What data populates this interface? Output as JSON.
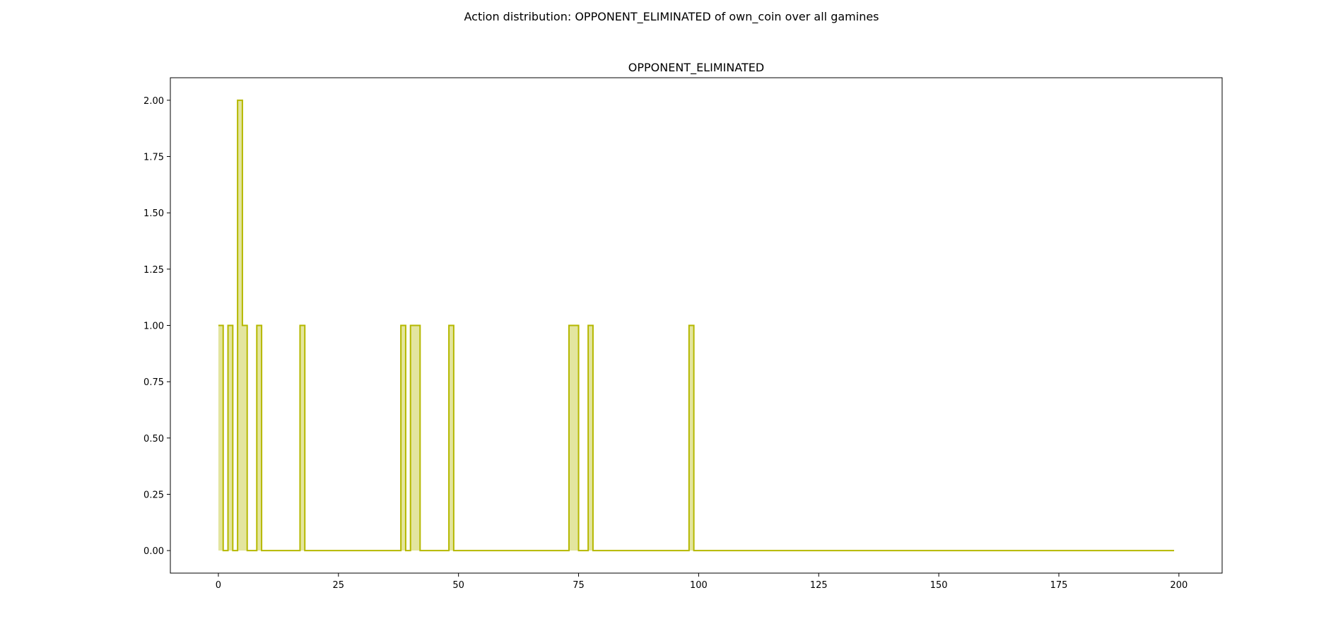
{
  "figure": {
    "suptitle": "Action distribution: OPPONENT_ELIMINATED of own_coin over all gamines"
  },
  "chart_data": {
    "type": "area",
    "title": "OPPONENT_ELIMINATED",
    "xlabel": "",
    "ylabel": "",
    "xlim": [
      -10,
      209
    ],
    "ylim": [
      -0.1,
      2.1
    ],
    "xticks": [
      0,
      25,
      50,
      75,
      100,
      125,
      150,
      175,
      200
    ],
    "yticks": [
      0.0,
      0.25,
      0.5,
      0.75,
      1.0,
      1.25,
      1.5,
      1.75,
      2.0
    ],
    "grid": false,
    "colors": {
      "line": "#b5b800",
      "fill": "#e3e59f"
    },
    "series": [
      {
        "x": [
          0,
          1,
          2,
          3,
          4,
          5,
          6,
          7,
          8,
          9,
          10,
          11,
          12,
          13,
          14,
          15,
          16,
          17,
          18,
          19,
          20,
          21,
          22,
          23,
          24,
          25,
          26,
          27,
          28,
          29,
          30,
          31,
          32,
          33,
          34,
          35,
          36,
          37,
          38,
          39,
          40,
          41,
          42,
          43,
          44,
          45,
          46,
          47,
          48,
          49,
          50,
          51,
          52,
          53,
          54,
          55,
          56,
          57,
          58,
          59,
          60,
          61,
          62,
          63,
          64,
          65,
          66,
          67,
          68,
          69,
          70,
          71,
          72,
          73,
          74,
          75,
          76,
          77,
          78,
          79,
          80,
          81,
          82,
          83,
          84,
          85,
          86,
          87,
          88,
          89,
          90,
          91,
          92,
          93,
          94,
          95,
          96,
          97,
          98,
          99,
          199
        ],
        "values": [
          1,
          0,
          1,
          0,
          2,
          1,
          0,
          0,
          1,
          0,
          0,
          0,
          0,
          0,
          0,
          0,
          0,
          1,
          0,
          0,
          0,
          0,
          0,
          0,
          0,
          0,
          0,
          0,
          0,
          0,
          0,
          0,
          0,
          0,
          0,
          0,
          0,
          0,
          1,
          0,
          1,
          1,
          0,
          0,
          0,
          0,
          0,
          0,
          1,
          0,
          0,
          0,
          0,
          0,
          0,
          0,
          0,
          0,
          0,
          0,
          0,
          0,
          0,
          0,
          0,
          0,
          0,
          0,
          0,
          0,
          0,
          0,
          0,
          1,
          1,
          0,
          0,
          1,
          0,
          0,
          0,
          0,
          0,
          0,
          0,
          0,
          0,
          0,
          0,
          0,
          0,
          0,
          0,
          0,
          0,
          0,
          0,
          0,
          1,
          0,
          0
        ]
      }
    ]
  }
}
